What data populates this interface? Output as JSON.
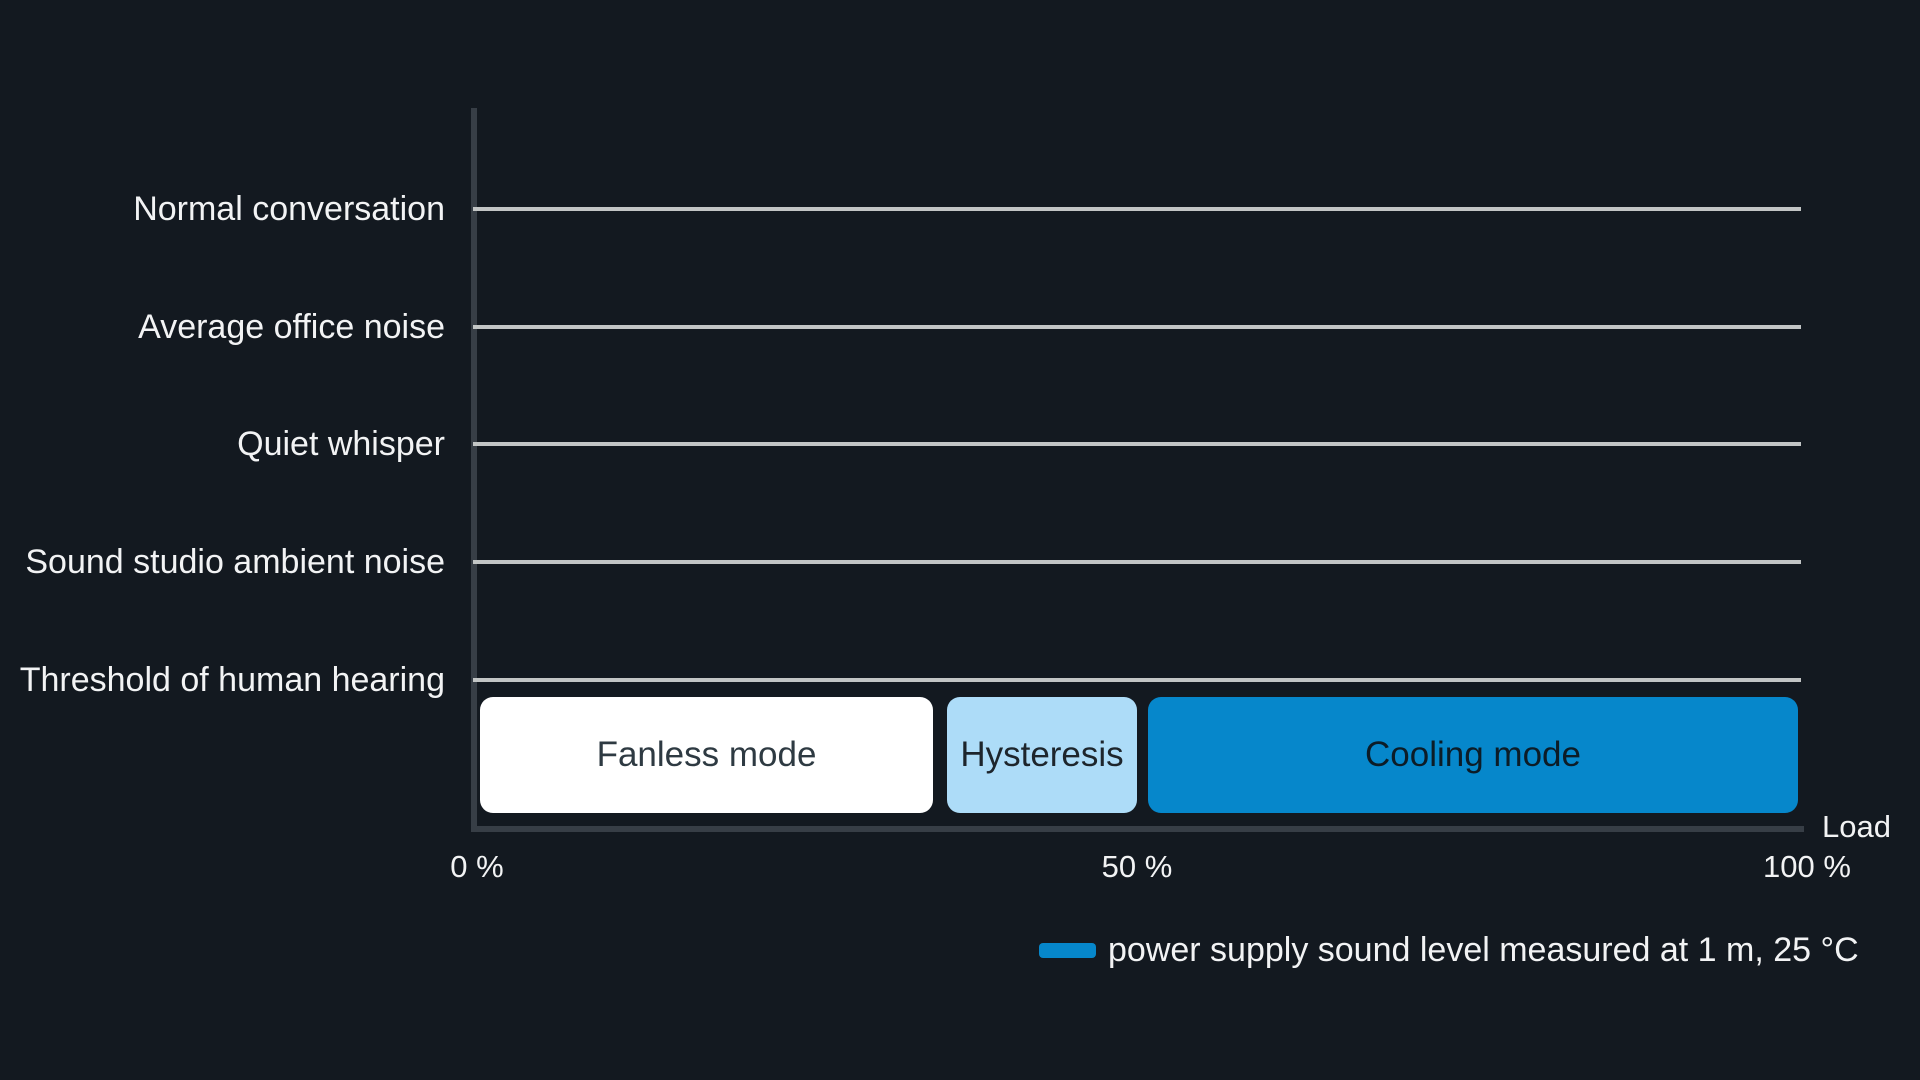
{
  "colors": {
    "background": "#131920",
    "axis": "#373e46",
    "gridline": "#c2c5c5",
    "text": "#f2f3f4"
  },
  "chart_data": {
    "type": "bar",
    "subtype": "horizontal-operating-mode-zones",
    "title": "",
    "xlabel": "Load",
    "ylabel": "",
    "xlim": [
      0,
      100
    ],
    "grid": true,
    "legend_position": "bottom-right",
    "categories": [
      "Normal conversation",
      "Average office noise",
      "Quiet whisper",
      "Sound studio ambient noise",
      "Threshold of human hearing"
    ],
    "x_ticks": [
      {
        "value": 0,
        "label": "0 %"
      },
      {
        "value": 50,
        "label": "50 %"
      },
      {
        "value": 100,
        "label": "100 %"
      }
    ],
    "zones": [
      {
        "label": "Fanless mode",
        "start_pct": 0,
        "end_pct": 35,
        "color": "#ffffff",
        "text_color": "#2e3a42"
      },
      {
        "label": "Hysteresis",
        "start_pct": 35,
        "end_pct": 50,
        "color": "#addcf8",
        "text_color": "#1d252c"
      },
      {
        "label": "Cooling mode",
        "start_pct": 50,
        "end_pct": 100,
        "color": "#0687cb",
        "text_color": "#0c1c27"
      }
    ],
    "legend": {
      "label": "power supply sound level measured at 1 m, 25 °C",
      "swatch_color": "#0687cb"
    }
  }
}
